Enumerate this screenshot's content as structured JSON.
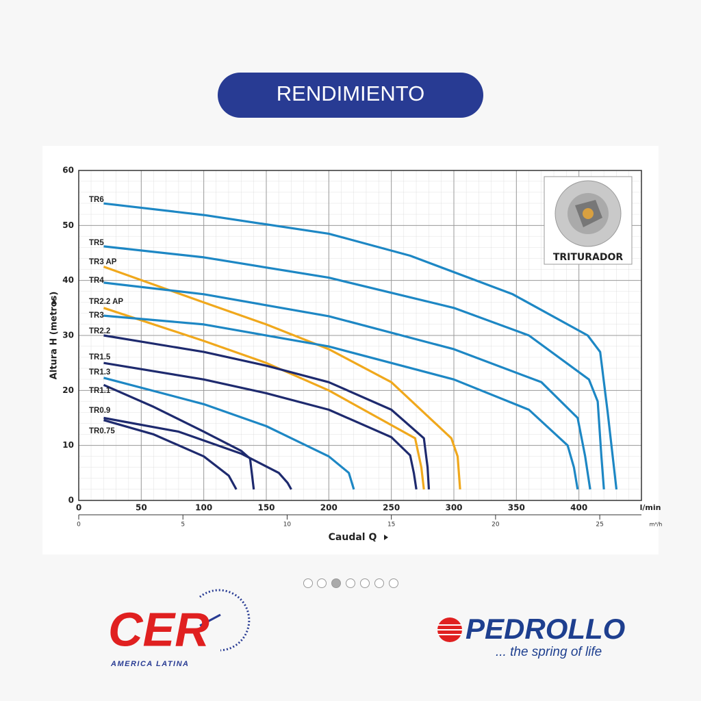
{
  "header": {
    "title": "RENDIMIENTO"
  },
  "chart_data": {
    "type": "line",
    "y_label": "Altura H (metros)",
    "x_label": "Caudal Q",
    "x_unit": "l/min",
    "x2_unit": "m³/h",
    "inset_label": "TRITURADOR",
    "xlim": [
      0,
      450
    ],
    "xticks": [
      0,
      50,
      100,
      150,
      200,
      250,
      300,
      350,
      400
    ],
    "x2lim": [
      0,
      27
    ],
    "x2ticks": [
      0,
      5,
      10,
      15,
      20,
      25
    ],
    "ylim": [
      0,
      60
    ],
    "yticks": [
      0,
      10,
      20,
      30,
      40,
      50,
      60
    ],
    "grid": true,
    "series": [
      {
        "name": "TR6",
        "color": "#1d87c4",
        "x": [
          20,
          100,
          200,
          265,
          347,
          407,
          417,
          423,
          430
        ],
        "values": [
          54,
          51.9,
          48.5,
          44.5,
          37.5,
          30,
          27,
          16,
          2
        ]
      },
      {
        "name": "TR5",
        "color": "#1d87c4",
        "x": [
          20,
          100,
          200,
          300,
          360,
          408,
          415,
          418,
          420
        ],
        "values": [
          46.2,
          44.2,
          40.5,
          35,
          30,
          22,
          18,
          8,
          2
        ]
      },
      {
        "name": "TR3 AP",
        "color": "#f0a81c",
        "x": [
          20,
          100,
          150,
          200,
          250,
          298,
          303,
          305
        ],
        "values": [
          42.5,
          36,
          32,
          27.5,
          21.5,
          11.3,
          8,
          2
        ]
      },
      {
        "name": "TR4",
        "color": "#1d87c4",
        "x": [
          20,
          100,
          200,
          300,
          370,
          399,
          405,
          409
        ],
        "values": [
          39.6,
          37.5,
          33.5,
          27.5,
          21.5,
          15,
          8,
          2
        ]
      },
      {
        "name": "TR2.2 AP",
        "color": "#f0a81c",
        "x": [
          20,
          100,
          150,
          200,
          269,
          274,
          276
        ],
        "values": [
          35,
          29,
          25,
          20,
          11.3,
          6,
          2
        ]
      },
      {
        "name": "TR3",
        "color": "#1d87c4",
        "x": [
          20,
          100,
          200,
          300,
          360,
          391,
          396,
          399
        ],
        "values": [
          33.6,
          32,
          28,
          22,
          16.5,
          10,
          6,
          2
        ]
      },
      {
        "name": "TR2.2",
        "color": "#1e2a6e",
        "x": [
          20,
          100,
          150,
          200,
          250,
          276,
          279,
          280
        ],
        "values": [
          30,
          27,
          24.5,
          21.5,
          16.5,
          11.3,
          6,
          2
        ]
      },
      {
        "name": "TR1.5",
        "color": "#1e2a6e",
        "x": [
          20,
          100,
          150,
          200,
          250,
          265,
          268,
          270
        ],
        "values": [
          25,
          22,
          19.5,
          16.5,
          11.5,
          8.2,
          5,
          2
        ]
      },
      {
        "name": "TR1.3",
        "color": "#1d87c4",
        "x": [
          20,
          100,
          150,
          200,
          216,
          220
        ],
        "values": [
          22.3,
          17.5,
          13.5,
          8,
          5,
          2
        ]
      },
      {
        "name": "TR1.1",
        "color": "#1e2a6e",
        "x": [
          20,
          60,
          100,
          130,
          137,
          140
        ],
        "values": [
          21,
          17,
          12.5,
          9,
          7.6,
          2
        ]
      },
      {
        "name": "TR0.9",
        "color": "#1e2a6e",
        "x": [
          20,
          80,
          130,
          160,
          167,
          170
        ],
        "values": [
          15,
          12.5,
          8.5,
          5,
          3.2,
          2
        ]
      },
      {
        "name": "TR0.75",
        "color": "#1e2a6e",
        "x": [
          20,
          60,
          100,
          120,
          126
        ],
        "values": [
          14.6,
          12,
          8,
          4.5,
          2
        ]
      }
    ]
  },
  "footer": {
    "cer_logo": "CER",
    "cer_subtitle": "AMERICA LATINA",
    "pedrollo_logo": "PEDROLLO",
    "pedrollo_slogan": "... the spring of life"
  }
}
